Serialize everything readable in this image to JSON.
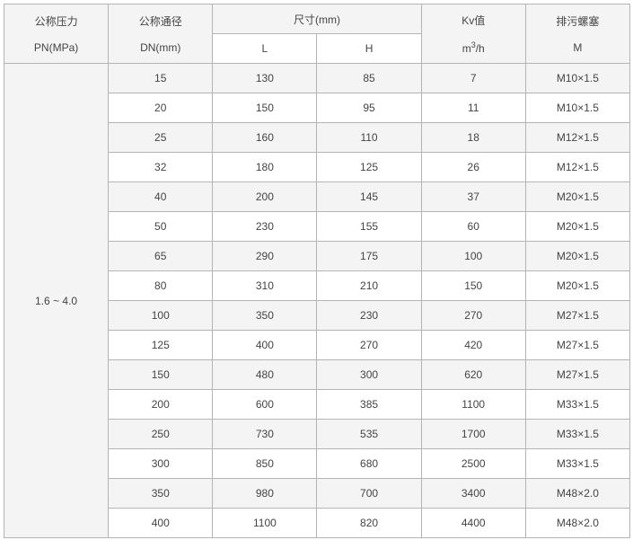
{
  "headers": {
    "pn": {
      "line1": "公称压力",
      "line2": "PN(MPa)"
    },
    "dn": {
      "line1": "公称通径",
      "line2": "DN(mm)"
    },
    "size": "尺寸(mm)",
    "L": "L",
    "H": "H",
    "kv": {
      "line1": "Kv值",
      "unit_base": "m",
      "unit_sup": "3",
      "unit_rest": "/h"
    },
    "plug": {
      "line1": "排污螺塞",
      "line2": "M"
    }
  },
  "pn_value": "1.6 ~ 4.0",
  "rows": [
    [
      "15",
      "130",
      "85",
      "7",
      "M10×1.5"
    ],
    [
      "20",
      "150",
      "95",
      "11",
      "M10×1.5"
    ],
    [
      "25",
      "160",
      "110",
      "18",
      "M12×1.5"
    ],
    [
      "32",
      "180",
      "125",
      "26",
      "M12×1.5"
    ],
    [
      "40",
      "200",
      "145",
      "37",
      "M20×1.5"
    ],
    [
      "50",
      "230",
      "155",
      "60",
      "M20×1.5"
    ],
    [
      "65",
      "290",
      "175",
      "100",
      "M20×1.5"
    ],
    [
      "80",
      "310",
      "210",
      "150",
      "M20×1.5"
    ],
    [
      "100",
      "350",
      "230",
      "270",
      "M27×1.5"
    ],
    [
      "125",
      "400",
      "270",
      "420",
      "M27×1.5"
    ],
    [
      "150",
      "480",
      "300",
      "620",
      "M27×1.5"
    ],
    [
      "200",
      "600",
      "385",
      "1100",
      "M33×1.5"
    ],
    [
      "250",
      "730",
      "535",
      "1700",
      "M33×1.5"
    ],
    [
      "300",
      "850",
      "680",
      "2500",
      "M33×1.5"
    ],
    [
      "350",
      "980",
      "700",
      "3400",
      "M48×2.0"
    ],
    [
      "400",
      "1100",
      "820",
      "4400",
      "M48×2.0"
    ]
  ]
}
